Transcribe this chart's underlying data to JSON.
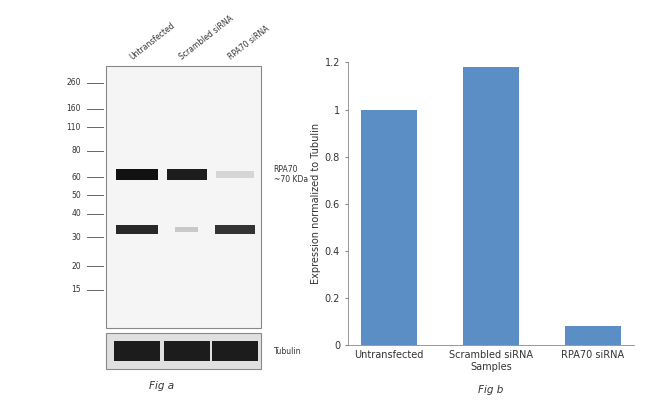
{
  "bar_categories": [
    "Untransfected",
    "Scrambled siRNA\nSamples",
    "RPA70 siRNA"
  ],
  "bar_values": [
    1.0,
    1.18,
    0.08
  ],
  "bar_color": "#5b8ec4",
  "ylim": [
    0,
    1.2
  ],
  "yticks": [
    0,
    0.2,
    0.4,
    0.6,
    0.8,
    1.0,
    1.2
  ],
  "ylabel": "Expression normalized to Tubulin",
  "fig_a_label": "Fig a",
  "fig_b_label": "Fig b",
  "wb_marker_labels": [
    "260",
    "160",
    "110",
    "80",
    "60",
    "50",
    "40",
    "30",
    "20",
    "15"
  ],
  "wb_marker_positions": [
    0.935,
    0.835,
    0.765,
    0.675,
    0.575,
    0.505,
    0.435,
    0.345,
    0.235,
    0.145
  ],
  "rpa70_label": "RPA70\n~70 KDa",
  "tubulin_label": "Tubulin",
  "lane_labels": [
    "Untransfected",
    "Scrambled siRNA",
    "RPA70 siRNA"
  ],
  "blot_bg": "#f5f5f5",
  "band_color": "#1a1a1a",
  "background_color": "#ffffff"
}
